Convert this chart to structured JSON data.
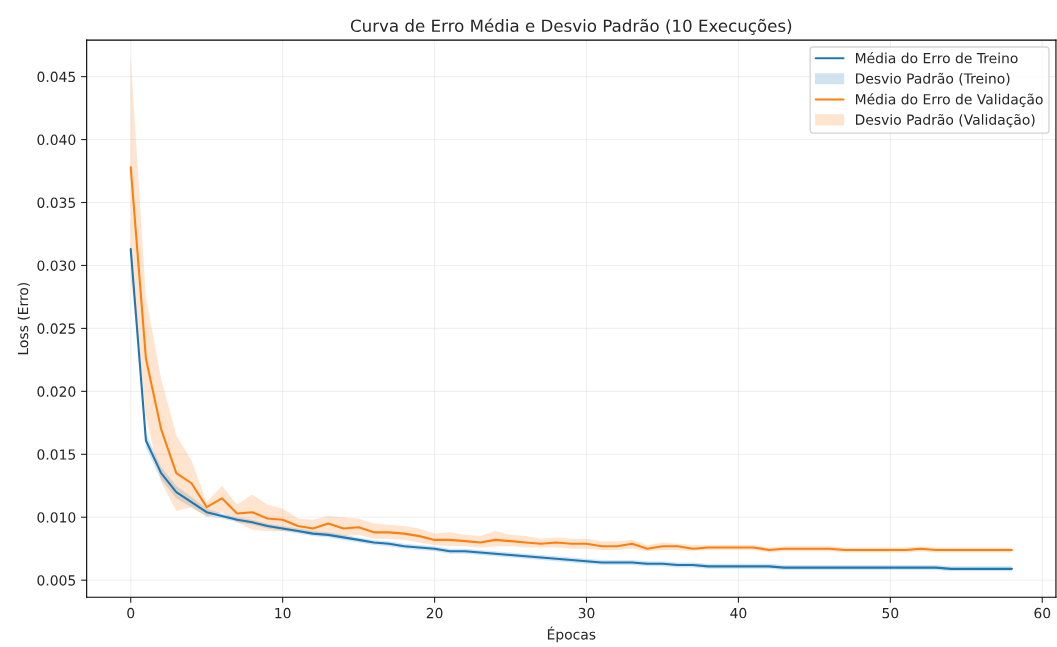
{
  "chart_data": {
    "type": "line",
    "title": "Curva de Erro Média e Desvio Padrão (10 Execuções)",
    "xlabel": "Épocas",
    "ylabel": "Loss (Erro)",
    "x": [
      0,
      1,
      2,
      3,
      4,
      5,
      6,
      7,
      8,
      9,
      10,
      11,
      12,
      13,
      14,
      15,
      16,
      17,
      18,
      19,
      20,
      21,
      22,
      23,
      24,
      25,
      26,
      27,
      28,
      29,
      30,
      31,
      32,
      33,
      34,
      35,
      36,
      37,
      38,
      39,
      40,
      41,
      42,
      43,
      44,
      45,
      46,
      47,
      48,
      49,
      50,
      51,
      52,
      53,
      54,
      55,
      56,
      57,
      58
    ],
    "series": [
      {
        "name": "Média do Erro de Treino",
        "color": "#1f77b4",
        "values": [
          0.0313,
          0.0161,
          0.0135,
          0.012,
          0.0112,
          0.0104,
          0.0101,
          0.0098,
          0.0096,
          0.0093,
          0.0091,
          0.0089,
          0.0087,
          0.0086,
          0.0084,
          0.0082,
          0.008,
          0.0079,
          0.0077,
          0.0076,
          0.0075,
          0.0073,
          0.0073,
          0.0072,
          0.0071,
          0.007,
          0.0069,
          0.0068,
          0.0067,
          0.0066,
          0.0065,
          0.0064,
          0.0064,
          0.0064,
          0.0063,
          0.0063,
          0.0062,
          0.0062,
          0.0061,
          0.0061,
          0.0061,
          0.0061,
          0.0061,
          0.006,
          0.006,
          0.006,
          0.006,
          0.006,
          0.006,
          0.006,
          0.006,
          0.006,
          0.006,
          0.006,
          0.0059,
          0.0059,
          0.0059,
          0.0059,
          0.0059
        ]
      },
      {
        "name": "Desvio Padrão (Treino)",
        "type": "area",
        "color": "#1f77b4",
        "values": [
          null,
          null,
          null,
          null,
          null,
          null,
          null,
          null,
          null,
          null,
          null,
          null,
          null,
          null,
          null,
          null,
          null,
          null,
          null,
          null,
          null,
          null,
          null,
          null,
          null,
          null,
          null,
          null,
          null,
          null,
          null,
          null,
          null,
          null,
          null,
          null,
          null,
          null,
          null,
          null,
          null,
          null,
          null,
          null,
          null,
          null,
          null,
          null,
          null,
          null,
          null,
          null,
          null,
          null,
          null,
          null,
          null,
          null,
          null
        ],
        "lower": [
          0.0309,
          0.0155,
          0.013,
          0.0115,
          0.0108,
          0.0101,
          0.0099,
          0.0096,
          0.0094,
          0.0091,
          0.0089,
          0.0087,
          0.0085,
          0.0084,
          0.0082,
          0.008,
          0.0078,
          0.0077,
          0.0075,
          0.0074,
          0.0073,
          0.0071,
          0.0071,
          0.007,
          0.0069,
          0.0068,
          0.0067,
          0.0066,
          0.0065,
          0.0064,
          0.0063,
          0.0062,
          0.0062,
          0.0062,
          0.0061,
          0.0061,
          0.006,
          0.006,
          0.0059,
          0.0059,
          0.0059,
          0.0059,
          0.0059,
          0.0058,
          0.0058,
          0.0058,
          0.0058,
          0.0058,
          0.0058,
          0.0058,
          0.0058,
          0.0058,
          0.0058,
          0.0058,
          0.0057,
          0.0057,
          0.0057,
          0.0057,
          0.0057
        ],
        "upper": [
          0.0317,
          0.0167,
          0.014,
          0.0125,
          0.0116,
          0.0107,
          0.0103,
          0.01,
          0.0098,
          0.0095,
          0.0093,
          0.0091,
          0.0089,
          0.0088,
          0.0086,
          0.0084,
          0.0082,
          0.0081,
          0.0079,
          0.0078,
          0.0077,
          0.0075,
          0.0075,
          0.0074,
          0.0073,
          0.0072,
          0.0071,
          0.007,
          0.0069,
          0.0068,
          0.0067,
          0.0066,
          0.0066,
          0.0066,
          0.0065,
          0.0065,
          0.0064,
          0.0064,
          0.0063,
          0.0063,
          0.0063,
          0.0063,
          0.0063,
          0.0062,
          0.0062,
          0.0062,
          0.0062,
          0.0062,
          0.0062,
          0.0062,
          0.0062,
          0.0062,
          0.0062,
          0.0062,
          0.0061,
          0.0061,
          0.0061,
          0.0061,
          0.0061
        ]
      },
      {
        "name": "Média do Erro de Validação",
        "color": "#ff7f0e",
        "values": [
          0.0378,
          0.0226,
          0.017,
          0.0135,
          0.0127,
          0.0108,
          0.0115,
          0.0103,
          0.0104,
          0.0099,
          0.0098,
          0.0093,
          0.0091,
          0.0095,
          0.0091,
          0.0092,
          0.0088,
          0.0088,
          0.0087,
          0.0085,
          0.0082,
          0.0082,
          0.0081,
          0.008,
          0.0082,
          0.0081,
          0.008,
          0.0079,
          0.008,
          0.0079,
          0.0079,
          0.0077,
          0.0077,
          0.0079,
          0.0075,
          0.0077,
          0.0077,
          0.0075,
          0.0076,
          0.0076,
          0.0076,
          0.0076,
          0.0074,
          0.0075,
          0.0075,
          0.0075,
          0.0075,
          0.0074,
          0.0074,
          0.0074,
          0.0074,
          0.0074,
          0.0075,
          0.0074,
          0.0074,
          0.0074,
          0.0074,
          0.0074,
          0.0074
        ]
      },
      {
        "name": "Desvio Padrão (Validação)",
        "type": "area",
        "color": "#ff7f0e",
        "values": [
          null,
          null,
          null,
          null,
          null,
          null,
          null,
          null,
          null,
          null,
          null,
          null,
          null,
          null,
          null,
          null,
          null,
          null,
          null,
          null,
          null,
          null,
          null,
          null,
          null,
          null,
          null,
          null,
          null,
          null,
          null,
          null,
          null,
          null,
          null,
          null,
          null,
          null,
          null,
          null,
          null,
          null,
          null,
          null,
          null,
          null,
          null,
          null,
          null,
          null,
          null,
          null,
          null,
          null,
          null,
          null,
          null,
          null,
          null
        ],
        "lower": [
          0.029,
          0.018,
          0.0128,
          0.0105,
          0.0108,
          0.01,
          0.0104,
          0.0096,
          0.009,
          0.0089,
          0.0089,
          0.0088,
          0.0086,
          0.0087,
          0.0085,
          0.0086,
          0.0083,
          0.0083,
          0.0082,
          0.008,
          0.0078,
          0.0077,
          0.0077,
          0.0076,
          0.0077,
          0.0077,
          0.0076,
          0.0076,
          0.0076,
          0.0075,
          0.0075,
          0.0074,
          0.0074,
          0.0075,
          0.0073,
          0.0074,
          0.0074,
          0.0073,
          0.0074,
          0.0074,
          0.0074,
          0.0074,
          0.0072,
          0.0073,
          0.0073,
          0.0073,
          0.0073,
          0.0072,
          0.0072,
          0.0072,
          0.0072,
          0.0072,
          0.0073,
          0.0072,
          0.0072,
          0.0072,
          0.0072,
          0.0072,
          0.0072
        ],
        "upper": [
          0.0465,
          0.0275,
          0.021,
          0.0165,
          0.0145,
          0.0112,
          0.0125,
          0.011,
          0.0118,
          0.011,
          0.0107,
          0.0099,
          0.0098,
          0.0101,
          0.01,
          0.0099,
          0.0095,
          0.0094,
          0.0093,
          0.0091,
          0.0087,
          0.0088,
          0.0086,
          0.0085,
          0.0089,
          0.0086,
          0.0085,
          0.0083,
          0.0084,
          0.0083,
          0.0083,
          0.0081,
          0.0081,
          0.0082,
          0.0078,
          0.008,
          0.0079,
          0.0078,
          0.0078,
          0.0078,
          0.0078,
          0.0078,
          0.0076,
          0.0077,
          0.0077,
          0.0077,
          0.0077,
          0.0076,
          0.0076,
          0.0076,
          0.0076,
          0.0076,
          0.0077,
          0.0076,
          0.0076,
          0.0076,
          0.0076,
          0.0076,
          0.0076
        ]
      }
    ],
    "xlim": [
      -2.9,
      60.9
    ],
    "xticks": [
      0,
      10,
      20,
      30,
      40,
      50,
      60
    ],
    "ylim": [
      0.00365,
      0.0479
    ],
    "yticks": [
      {
        "value": 0.005,
        "label": "0.005"
      },
      {
        "value": 0.01,
        "label": "0.010"
      },
      {
        "value": 0.015,
        "label": "0.015"
      },
      {
        "value": 0.02,
        "label": "0.020"
      },
      {
        "value": 0.025,
        "label": "0.025"
      },
      {
        "value": 0.03,
        "label": "0.030"
      },
      {
        "value": 0.035,
        "label": "0.035"
      },
      {
        "value": 0.04,
        "label": "0.040"
      },
      {
        "value": 0.045,
        "label": "0.045"
      }
    ],
    "grid": true,
    "legend": "top right"
  }
}
